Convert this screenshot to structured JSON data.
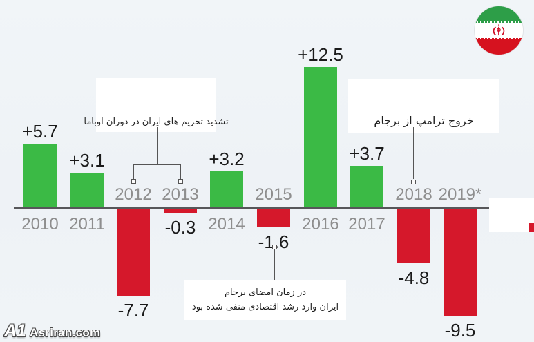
{
  "chart_data": {
    "type": "bar",
    "title": "",
    "xlabel": "",
    "ylabel": "",
    "categories": [
      "2010",
      "2011",
      "2012",
      "2013",
      "2014",
      "2015",
      "2016",
      "2017",
      "2018",
      "2019*"
    ],
    "values": [
      5.7,
      3.1,
      -7.7,
      -0.3,
      3.2,
      -1.6,
      12.5,
      3.7,
      -4.8,
      -9.5
    ],
    "value_labels": [
      "+5.7",
      "+3.1",
      "-7.7",
      "-0.3",
      "+3.2",
      "-1.6",
      "+12.5",
      "+3.7",
      "-4.8",
      "-9.5"
    ],
    "ylim": [
      -10,
      13
    ],
    "grid": false,
    "legend": false,
    "positive_color": "#3bba45",
    "negative_color": "#d5182b",
    "axis_color": "#57575a",
    "label_color": "#1a1a1a",
    "category_color": "#8e8e8e",
    "annotations": [
      {
        "id": "obama-sanctions",
        "text": "تشدید تحریم های ایران در دوران اوباما",
        "targets": [
          "2012",
          "2013"
        ]
      },
      {
        "id": "jcpoa-signing",
        "text_line1": "در زمان امضای برجام",
        "text_line2": "ایران وارد رشد اقتصادی منفی شده بود",
        "targets": [
          "2015"
        ]
      },
      {
        "id": "trump-exit",
        "text": "خروج ترامپ از برجام",
        "targets": [
          "2018"
        ]
      }
    ]
  },
  "flag": {
    "label": "iran-flag",
    "green": "#2d9e48",
    "white": "#ffffff",
    "red": "#d6121f",
    "emblem_color": "#cf0921"
  },
  "watermark": {
    "logo": "A1",
    "text": "Asriran.com"
  }
}
